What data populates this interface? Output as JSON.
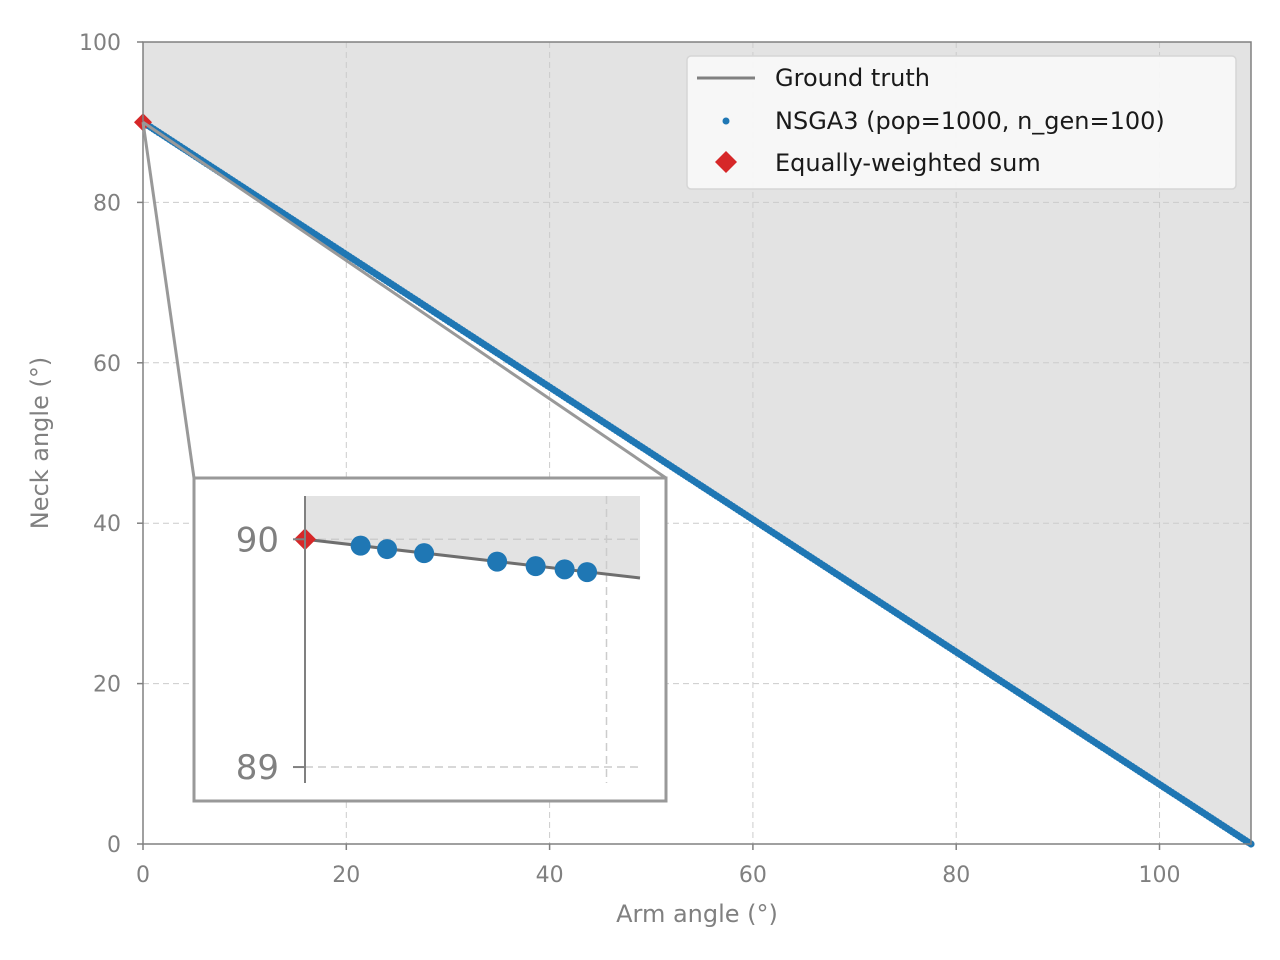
{
  "chart_data": {
    "type": "scatter",
    "title": "",
    "xlabel": "Arm angle (°)",
    "ylabel": "Neck angle (°)",
    "xlim": [
      0,
      109
    ],
    "ylim": [
      0,
      100
    ],
    "xticks": [
      "0",
      "20",
      "40",
      "60",
      "80",
      "100"
    ],
    "yticks": [
      "0",
      "20",
      "40",
      "60",
      "80",
      "100"
    ],
    "grid": true,
    "shaded_region": "above ground truth",
    "legend_position": "top-right",
    "legend": {
      "ground_truth": "Ground truth",
      "nsga3": "NSGA3 (pop=1000, n_gen=100)",
      "weighted": "Equally-weighted sum"
    },
    "series": [
      {
        "name": "Ground truth",
        "kind": "line",
        "color": "#808080",
        "x": [
          0,
          109
        ],
        "y": [
          90,
          0
        ]
      },
      {
        "name": "NSGA3 (pop=1000, n_gen=100)",
        "kind": "scatter",
        "color": "#1f77b4",
        "x_range": [
          0,
          109
        ],
        "y_range": [
          90,
          0
        ],
        "count": 1000
      },
      {
        "name": "Equally-weighted sum",
        "kind": "marker",
        "color": "#d62728",
        "x": [
          0
        ],
        "y": [
          90
        ]
      }
    ],
    "inset": {
      "xlim": [
        0,
        0.2
      ],
      "ylim": [
        88.93,
        90.19
      ],
      "yticks": [
        "89",
        "90"
      ],
      "ground_truth": {
        "x": [
          0,
          0.2
        ],
        "y": [
          90,
          89.83
        ]
      },
      "points": [
        {
          "x": 0.0332,
          "y": 89.972
        },
        {
          "x": 0.049,
          "y": 89.957
        },
        {
          "x": 0.0711,
          "y": 89.939
        },
        {
          "x": 0.1147,
          "y": 89.902
        },
        {
          "x": 0.1377,
          "y": 89.882
        },
        {
          "x": 0.155,
          "y": 89.868
        },
        {
          "x": 0.1684,
          "y": 89.856
        }
      ],
      "weighted_point": {
        "x": 0,
        "y": 90
      }
    }
  }
}
